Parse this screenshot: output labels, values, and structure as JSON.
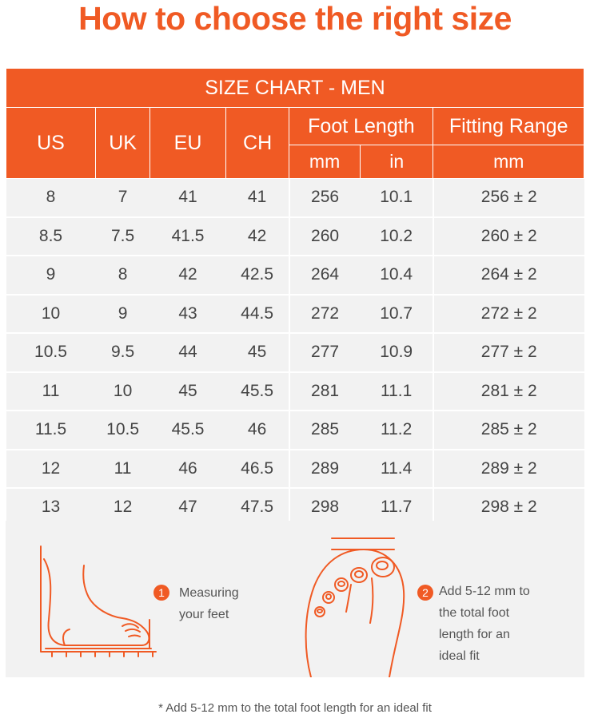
{
  "title": "How to choose the right size",
  "table": {
    "band_label": "SIZE CHART - MEN",
    "headers": {
      "us": "US",
      "uk": "UK",
      "eu": "EU",
      "ch": "CH",
      "foot_length": "Foot Length",
      "fitting_range": "Fitting Range",
      "mm": "mm",
      "in": "in",
      "range_unit": "mm"
    },
    "rows": [
      [
        "8",
        "7",
        "41",
        "41",
        "256",
        "10.1",
        "256 ± 2"
      ],
      [
        "8.5",
        "7.5",
        "41.5",
        "42",
        "260",
        "10.2",
        "260 ± 2"
      ],
      [
        "9",
        "8",
        "42",
        "42.5",
        "264",
        "10.4",
        "264 ± 2"
      ],
      [
        "10",
        "9",
        "43",
        "44.5",
        "272",
        "10.7",
        "272 ± 2"
      ],
      [
        "10.5",
        "9.5",
        "44",
        "45",
        "277",
        "10.9",
        "277 ± 2"
      ],
      [
        "11",
        "10",
        "45",
        "45.5",
        "281",
        "11.1",
        "281 ± 2"
      ],
      [
        "11.5",
        "10.5",
        "45.5",
        "46",
        "285",
        "11.2",
        "285 ± 2"
      ],
      [
        "12",
        "11",
        "46",
        "46.5",
        "289",
        "11.4",
        "289 ± 2"
      ],
      [
        "13",
        "12",
        "47",
        "47.5",
        "298",
        "11.7",
        "298 ± 2"
      ]
    ]
  },
  "guide": {
    "step1": {
      "number": "1",
      "line1": "Measuring",
      "line2": "your feet"
    },
    "step2": {
      "number": "2",
      "line1": "Add 5-12 mm to",
      "line2": "the total foot",
      "line3": "length for an",
      "line4": "ideal fit"
    }
  },
  "footnote": "* Add 5-12 mm to the total foot length for an ideal fit",
  "colors": {
    "accent": "#f05a24",
    "row_bg": "#f2f2f2",
    "text": "#444444"
  }
}
